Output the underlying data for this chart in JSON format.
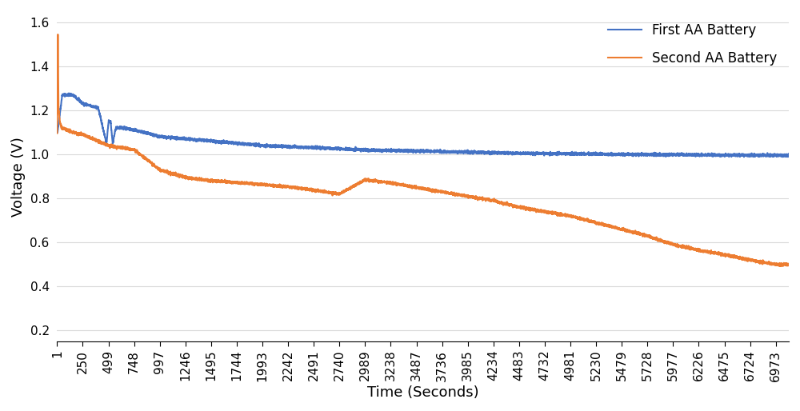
{
  "title": "",
  "xlabel": "Time (Seconds)",
  "ylabel": "Voltage (V)",
  "x_ticks": [
    1,
    250,
    499,
    748,
    997,
    1246,
    1495,
    1744,
    1993,
    2242,
    2491,
    2740,
    2989,
    3238,
    3487,
    3736,
    3985,
    4234,
    4483,
    4732,
    4981,
    5230,
    5479,
    5728,
    5977,
    6226,
    6475,
    6724,
    6973
  ],
  "ylim": [
    0.15,
    1.65
  ],
  "yticks": [
    0.2,
    0.4,
    0.6,
    0.8,
    1.0,
    1.2,
    1.4,
    1.6
  ],
  "blue_color": "#4472C4",
  "orange_color": "#ED7D31",
  "legend_labels": [
    "First AA Battery",
    "Second AA Battery"
  ],
  "bg_color": "#FFFFFF",
  "grid_color": "#D9D9D9",
  "line_width": 1.5,
  "font_size_axis_label": 13,
  "font_size_tick": 11,
  "font_size_legend": 12
}
